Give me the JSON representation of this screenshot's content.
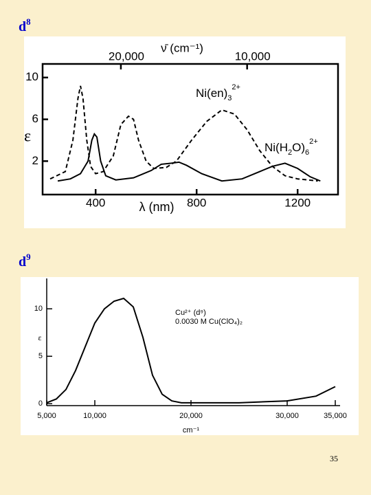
{
  "slide": {
    "heading1": {
      "letter": "d",
      "sup": "8"
    },
    "heading2": {
      "letter": "d",
      "sup": "9"
    },
    "page_number": "35"
  },
  "chart_data": [
    {
      "type": "line",
      "frame": "box",
      "ylabel": "ε",
      "xlabel": "λ (nm)",
      "x2label": "ν̄ (cm⁻¹)",
      "xlim": [
        190,
        1360
      ],
      "ylim": [
        -1.2,
        11.3
      ],
      "xticks": [
        400,
        800,
        1200
      ],
      "yticks": [
        2,
        6,
        10
      ],
      "x2ticks": [
        {
          "value": 20000,
          "label": "20,000"
        },
        {
          "value": 10000,
          "label": "10,000"
        }
      ],
      "series": [
        {
          "name": "Ni(en)",
          "name_sub": "3",
          "name_sup": "2+",
          "color": "#000000",
          "dashed": true,
          "x": [
            220,
            280,
            310,
            330,
            340,
            350,
            365,
            380,
            400,
            430,
            470,
            500,
            530,
            550,
            570,
            600,
            630,
            680,
            720,
            780,
            840,
            900,
            950,
            1000,
            1050,
            1100,
            1150,
            1200,
            1280
          ],
          "values": [
            0.3,
            1,
            4,
            8,
            9.2,
            8,
            4,
            1.5,
            0.8,
            1,
            2.5,
            5.5,
            6.3,
            6,
            4,
            2,
            1.3,
            1.4,
            2,
            4,
            5.8,
            6.9,
            6.5,
            5,
            3,
            1.5,
            0.6,
            0.3,
            0.1
          ]
        },
        {
          "name": "Ni(H",
          "name_sub": "2",
          "name_tail": "O)",
          "name_sub2": "6",
          "name_sup": "2+",
          "color": "#000000",
          "dashed": false,
          "x": [
            250,
            300,
            340,
            370,
            385,
            395,
            405,
            420,
            440,
            480,
            550,
            620,
            660,
            700,
            730,
            760,
            820,
            900,
            980,
            1050,
            1100,
            1150,
            1200,
            1250,
            1290
          ],
          "values": [
            0.1,
            0.3,
            0.8,
            2,
            4,
            4.6,
            4.3,
            2,
            0.6,
            0.2,
            0.4,
            1.1,
            1.7,
            1.8,
            1.9,
            1.6,
            0.8,
            0.1,
            0.3,
            1,
            1.5,
            1.8,
            1.3,
            0.5,
            0.1
          ]
        }
      ]
    },
    {
      "type": "line",
      "frame": "axes",
      "ylabel": "ε",
      "xlabel": "cm⁻¹",
      "annotations": [
        "Cu²⁺ (d⁹)",
        "0.0030 M Cu(ClO₄)₂"
      ],
      "xlim": [
        4500,
        35500
      ],
      "ylim": [
        -0.2,
        13.2
      ],
      "xticks": [
        {
          "value": 5000,
          "label": "5,000"
        },
        {
          "value": 10000,
          "label": "10,000"
        },
        {
          "value": 20000,
          "label": "20,000"
        },
        {
          "value": 30000,
          "label": "30,000"
        },
        {
          "value": 35000,
          "label": "35,000"
        }
      ],
      "yticks": [
        0,
        5,
        10
      ],
      "series": [
        {
          "name": "Cu",
          "color": "#000000",
          "dashed": false,
          "x": [
            5000,
            6000,
            7000,
            8000,
            9000,
            10000,
            11000,
            12000,
            13000,
            14000,
            15000,
            16000,
            17000,
            18000,
            19000,
            25000,
            30000,
            33000,
            35000
          ],
          "values": [
            0.1,
            0.5,
            1.5,
            3.5,
            6,
            8.5,
            10,
            10.8,
            11.1,
            10.2,
            7,
            3,
            1,
            0.3,
            0.1,
            0.1,
            0.3,
            0.8,
            1.8
          ]
        }
      ]
    }
  ]
}
